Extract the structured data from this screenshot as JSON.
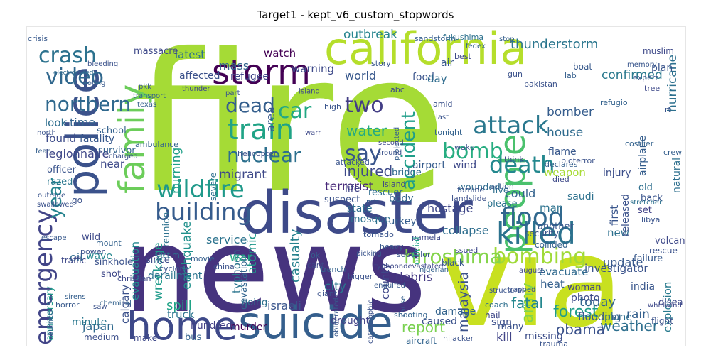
{
  "chart_data": {
    "type": "wordcloud",
    "title": "Target1 - kept_v6_custom_stopwords",
    "words": [
      {
        "text": "fire",
        "color": "#a5db36"
      },
      {
        "text": "news",
        "color": "#46337e"
      },
      {
        "text": "via",
        "color": "#c8e020"
      },
      {
        "text": "disaster",
        "color": "#3e4a89"
      },
      {
        "text": "california",
        "color": "#b5de2b"
      },
      {
        "text": "suicide",
        "color": "#355f8d"
      },
      {
        "text": "police",
        "color": "#3b528b"
      },
      {
        "text": "home",
        "color": "#3e4989"
      },
      {
        "text": "family",
        "color": "#6ccd5a"
      },
      {
        "text": "people",
        "color": "#4ac16d"
      },
      {
        "text": "killed",
        "color": "#2c728e"
      },
      {
        "text": "storm",
        "color": "#440154"
      },
      {
        "text": "train",
        "color": "#20a386"
      },
      {
        "text": "bombing",
        "color": "#a0da39"
      },
      {
        "text": "hiroshima",
        "color": "#84d44b"
      },
      {
        "text": "flood",
        "color": "#31688e"
      },
      {
        "text": "building",
        "color": "#365c8d"
      },
      {
        "text": "wildfire",
        "color": "#1f998a"
      },
      {
        "text": "emergency",
        "color": "#414487"
      },
      {
        "text": "death",
        "color": "#23888e"
      },
      {
        "text": "attack",
        "color": "#2a788e"
      },
      {
        "text": "crash",
        "color": "#2c728e"
      },
      {
        "text": "video",
        "color": "#31688e"
      },
      {
        "text": "northern",
        "color": "#30698e"
      },
      {
        "text": "nuclear",
        "color": "#2d708e"
      },
      {
        "text": "car",
        "color": "#22a884"
      },
      {
        "text": "dead",
        "color": "#355f8d"
      },
      {
        "text": "bomb",
        "color": "#27ad81"
      },
      {
        "text": "say",
        "color": "#39558c"
      },
      {
        "text": "two",
        "color": "#433e85"
      },
      {
        "text": "accident",
        "color": "#1f9e89"
      },
      {
        "text": "year",
        "color": "#25838e"
      },
      {
        "text": "thunderstorm",
        "color": "#2a768e"
      },
      {
        "text": "outbreak",
        "color": "#25848e"
      },
      {
        "text": "confirmed",
        "color": "#29798e"
      },
      {
        "text": "hurricane",
        "color": "#2d708e"
      },
      {
        "text": "weather",
        "color": "#2e6f8e"
      },
      {
        "text": "army",
        "color": "#7fd34e"
      },
      {
        "text": "forest",
        "color": "#1e9c89"
      },
      {
        "text": "fatal",
        "color": "#24878e"
      },
      {
        "text": "obama",
        "color": "#3b528b"
      },
      {
        "text": "explosion",
        "color": "#297b8e"
      },
      {
        "text": "malaysia",
        "color": "#3b528b"
      },
      {
        "text": "report",
        "color": "#7ad151"
      },
      {
        "text": "injured",
        "color": "#3e4a89"
      },
      {
        "text": "terrorist",
        "color": "#482878"
      },
      {
        "text": "hostage",
        "color": "#3f4788"
      },
      {
        "text": "collapse",
        "color": "#2e6e8e"
      },
      {
        "text": "debris",
        "color": "#443983"
      },
      {
        "text": "city",
        "color": "#2a768e"
      },
      {
        "text": "casualty",
        "color": "#26828e"
      },
      {
        "text": "atomic",
        "color": "#1f988b"
      },
      {
        "text": "typhoon",
        "color": "#2b758e"
      },
      {
        "text": "earthquake",
        "color": "#21918c"
      },
      {
        "text": "wreckage",
        "color": "#1e9b8a"
      },
      {
        "text": "evacuation",
        "color": "#23898e"
      },
      {
        "text": "refugee",
        "color": "#404588"
      },
      {
        "text": "mass",
        "color": "#32648e"
      },
      {
        "text": "water",
        "color": "#25ab82"
      },
      {
        "text": "bomber",
        "color": "#365d8d"
      },
      {
        "text": "house",
        "color": "#2f6b8e"
      },
      {
        "text": "world",
        "color": "#38588c"
      },
      {
        "text": "warning",
        "color": "#3e4a89"
      },
      {
        "text": "watch",
        "color": "#440154"
      },
      {
        "text": "food",
        "color": "#3a548c"
      },
      {
        "text": "latest",
        "color": "#2d718e"
      },
      {
        "text": "day",
        "color": "#2f6c8e"
      },
      {
        "text": "look",
        "color": "#2e6e8e"
      },
      {
        "text": "found",
        "color": "#3e4c8a"
      },
      {
        "text": "time",
        "color": "#33638d"
      },
      {
        "text": "legionnaire",
        "color": "#3f4889"
      },
      {
        "text": "weapon",
        "color": "#a8db34"
      },
      {
        "text": "burning",
        "color": "#1fa088"
      },
      {
        "text": "migrant",
        "color": "#3e4989"
      },
      {
        "text": "service",
        "color": "#2c738e"
      },
      {
        "text": "could",
        "color": "#33628d"
      },
      {
        "text": "update",
        "color": "#38598c"
      },
      {
        "text": "man",
        "color": "#2c728e"
      },
      {
        "text": "first",
        "color": "#39568c"
      },
      {
        "text": "new",
        "color": "#2d708e"
      },
      {
        "text": "near",
        "color": "#3e4a89"
      },
      {
        "text": "spill",
        "color": "#20a386"
      },
      {
        "text": "wave",
        "color": "#24868e"
      },
      {
        "text": "oil",
        "color": "#2f6b8e"
      },
      {
        "text": "today",
        "color": "#32648e"
      },
      {
        "text": "flooding",
        "color": "#38598c"
      },
      {
        "text": "rain",
        "color": "#34608d"
      },
      {
        "text": "plane",
        "color": "#2e6e8e"
      },
      {
        "text": "kill",
        "color": "#414487"
      },
      {
        "text": "murder",
        "color": "#440154"
      },
      {
        "text": "war",
        "color": "#22a785"
      },
      {
        "text": "israeli",
        "color": "#39558c"
      },
      {
        "text": "released",
        "color": "#3b528b"
      },
      {
        "text": "natural",
        "color": "#2e6f8e"
      },
      {
        "text": "life",
        "color": "#414487"
      },
      {
        "text": "mosque",
        "color": "#2d718e"
      },
      {
        "text": "japan",
        "color": "#306a8e"
      },
      {
        "text": "truck",
        "color": "#2b748e"
      },
      {
        "text": "county",
        "color": "#3f4788"
      },
      {
        "text": "heat",
        "color": "#35608d"
      },
      {
        "text": "investigator",
        "color": "#3a538b"
      },
      {
        "text": "photo",
        "color": "#3e4a89"
      },
      {
        "text": "evacuate",
        "color": "#306a8e"
      },
      {
        "text": "india",
        "color": "#39568c"
      },
      {
        "text": "minute",
        "color": "#2a788e"
      },
      {
        "text": "anniversary",
        "color": "#1f998a"
      },
      {
        "text": "calgary",
        "color": "#3b518b"
      },
      {
        "text": "sign",
        "color": "#3c4f8a"
      },
      {
        "text": "hundred",
        "color": "#424086"
      },
      {
        "text": "drought",
        "color": "#414287"
      },
      {
        "text": "caused",
        "color": "#3b528b"
      },
      {
        "text": "damage",
        "color": "#33638d"
      },
      {
        "text": "bus",
        "color": "#33628d"
      },
      {
        "text": "going",
        "color": "#2d718e"
      },
      {
        "text": "devastation",
        "color": "#32648e"
      },
      {
        "text": "turkey",
        "color": "#355e8d"
      },
      {
        "text": "flame",
        "color": "#38588c"
      },
      {
        "text": "injury",
        "color": "#3c4f8a"
      },
      {
        "text": "airplane",
        "color": "#355e8d"
      },
      {
        "text": "reunion",
        "color": "#2c718e"
      },
      {
        "text": "derailment",
        "color": "#2b748e"
      },
      {
        "text": "fatality",
        "color": "#38598c"
      },
      {
        "text": "old",
        "color": "#2e6f8e"
      },
      {
        "text": "back",
        "color": "#3a548c"
      },
      {
        "text": "set",
        "color": "#414287"
      },
      {
        "text": "failure",
        "color": "#38598c"
      },
      {
        "text": "body",
        "color": "#32648e"
      },
      {
        "text": "rescuer",
        "color": "#2f6c8e"
      },
      {
        "text": "suspect",
        "color": "#3b528b"
      },
      {
        "text": "state",
        "color": "#2e6e8e"
      },
      {
        "text": "bridge",
        "color": "#31688e"
      },
      {
        "text": "airport",
        "color": "#365c8d"
      },
      {
        "text": "wind",
        "color": "#3e4989"
      },
      {
        "text": "saudi",
        "color": "#2d718e"
      },
      {
        "text": "massacre",
        "color": "#3e4989"
      },
      {
        "text": "affected",
        "color": "#3b518b"
      },
      {
        "text": "air",
        "color": "#38588c"
      },
      {
        "text": "plan",
        "color": "#3a548c"
      },
      {
        "text": "muslim",
        "color": "#3e4989"
      },
      {
        "text": "sinkhole",
        "color": "#3b528b"
      },
      {
        "text": "shot",
        "color": "#3f4889"
      },
      {
        "text": "since",
        "color": "#3d4d8a"
      },
      {
        "text": "survivor",
        "color": "#33638d"
      },
      {
        "text": "officer",
        "color": "#3a548c"
      },
      {
        "text": "razed",
        "color": "#2a778e"
      },
      {
        "text": "go",
        "color": "#3b528b"
      },
      {
        "text": "wild",
        "color": "#3e4a89"
      },
      {
        "text": "school",
        "color": "#34618d"
      },
      {
        "text": "live",
        "color": "#2e6f8e"
      },
      {
        "text": "please",
        "color": "#2c738e"
      },
      {
        "text": "another",
        "color": "#39568c"
      },
      {
        "text": "woman",
        "color": "#414487"
      },
      {
        "text": "security",
        "color": "#3a548c"
      },
      {
        "text": "missing",
        "color": "#3d4e8a"
      },
      {
        "text": "many",
        "color": "#3b528b"
      },
      {
        "text": "sandstorm",
        "color": "#355f8d"
      },
      {
        "text": "fukushima",
        "color": "#2d718e"
      },
      {
        "text": "area",
        "color": "#38598c"
      },
      {
        "text": "collided",
        "color": "#33628d"
      },
      {
        "text": "wounded",
        "color": "#2f6b8e"
      },
      {
        "text": "severe",
        "color": "#2d708e"
      },
      {
        "text": "landslide",
        "color": "#3c4f8a"
      },
      {
        "text": "volcano",
        "color": "#3e4989"
      },
      {
        "text": "rescue",
        "color": "#3b528b"
      },
      {
        "text": "story",
        "color": "#39568c"
      },
      {
        "text": "best",
        "color": "#3e4989"
      },
      {
        "text": "gun",
        "color": "#3b528b"
      },
      {
        "text": "boat",
        "color": "#38598c"
      },
      {
        "text": "expert",
        "color": "#3a548c"
      },
      {
        "text": "costlier",
        "color": "#33628d"
      },
      {
        "text": "crew",
        "color": "#355f8d"
      },
      {
        "text": "island",
        "color": "#3f4788"
      },
      {
        "text": "electrocuted",
        "color": "#306a8e"
      },
      {
        "text": "disea",
        "color": "#3e4989"
      },
      {
        "text": "stretcher",
        "color": "#2d718e"
      },
      {
        "text": "hijacker",
        "color": "#3b528b"
      },
      {
        "text": "aircraft",
        "color": "#32648e"
      },
      {
        "text": "crashed",
        "color": "#3e4989"
      },
      {
        "text": "trauma",
        "color": "#3a548c"
      },
      {
        "text": "flight",
        "color": "#3b528b"
      },
      {
        "text": "shooting",
        "color": "#33638d"
      },
      {
        "text": "hail",
        "color": "#3f4788"
      },
      {
        "text": "coach",
        "color": "#2e6f8e"
      },
      {
        "text": "make",
        "color": "#3e4989"
      },
      {
        "text": "medium",
        "color": "#3c4f8a"
      },
      {
        "text": "horror",
        "color": "#38598c"
      },
      {
        "text": "movie",
        "color": "#355f8d"
      },
      {
        "text": "china",
        "color": "#3b528b"
      },
      {
        "text": "cyclone",
        "color": "#3a548c"
      },
      {
        "text": "victim",
        "color": "#2d718e"
      },
      {
        "text": "traffic",
        "color": "#3e4989"
      },
      {
        "text": "power",
        "color": "#3b528b"
      },
      {
        "text": "mount",
        "color": "#33628d"
      },
      {
        "text": "black",
        "color": "#39568c"
      },
      {
        "text": "soudelor",
        "color": "#3a548c"
      },
      {
        "text": "heavy",
        "color": "#38598c"
      },
      {
        "text": "pamela",
        "color": "#3e4989"
      },
      {
        "text": "bigger",
        "color": "#3b528b"
      },
      {
        "text": "trench",
        "color": "#33628d"
      },
      {
        "text": "ok",
        "color": "#355f8d"
      },
      {
        "text": "cant",
        "color": "#3f4788"
      },
      {
        "text": "giant",
        "color": "#3b528b"
      },
      {
        "text": "high",
        "color": "#3a548c"
      },
      {
        "text": "mh",
        "color": "#38598c"
      },
      {
        "text": "abc",
        "color": "#3e4989"
      },
      {
        "text": "amid",
        "color": "#3b528b"
      },
      {
        "text": "fedex",
        "color": "#33628d"
      },
      {
        "text": "stop",
        "color": "#355f8d"
      },
      {
        "text": "memory",
        "color": "#39568c"
      },
      {
        "text": "tree",
        "color": "#3e4989"
      },
      {
        "text": "rt",
        "color": "#3a548c"
      },
      {
        "text": "bioterror",
        "color": "#3b528b"
      },
      {
        "text": "crisis",
        "color": "#38598c"
      },
      {
        "text": "christian",
        "color": "#3e4989"
      },
      {
        "text": "ambulance",
        "color": "#33628d"
      },
      {
        "text": "helicopter",
        "color": "#3b528b"
      },
      {
        "text": "attacked",
        "color": "#3a548c"
      },
      {
        "text": "declares",
        "color": "#355f8d"
      },
      {
        "text": "died",
        "color": "#3e4989"
      },
      {
        "text": "famine",
        "color": "#3b528b"
      },
      {
        "text": "action",
        "color": "#39568c"
      },
      {
        "text": "tornado",
        "color": "#3a548c"
      },
      {
        "text": "issued",
        "color": "#3e4989"
      },
      {
        "text": "wake",
        "color": "#3b528b"
      },
      {
        "text": "tonight",
        "color": "#33628d"
      },
      {
        "text": "lab",
        "color": "#355f8d"
      },
      {
        "text": "think",
        "color": "#3e4989"
      },
      {
        "text": "outrage",
        "color": "#3a548c"
      },
      {
        "text": "swallowed",
        "color": "#3b528b"
      },
      {
        "text": "escape",
        "color": "#38598c"
      },
      {
        "text": "thunder",
        "color": "#3e4989"
      },
      {
        "text": "pakistan",
        "color": "#3b528b"
      },
      {
        "text": "refugio",
        "color": "#33628d"
      },
      {
        "text": "libya",
        "color": "#3a548c"
      },
      {
        "text": "projected",
        "color": "#355f8d"
      },
      {
        "text": "island",
        "color": "#3e4989"
      },
      {
        "text": "charged",
        "color": "#3b528b"
      },
      {
        "text": "structural",
        "color": "#3a548c"
      },
      {
        "text": "engulfed",
        "color": "#38598c"
      },
      {
        "text": "whirlwind",
        "color": "#3e4989"
      },
      {
        "text": "trapped",
        "color": "#3b528b"
      },
      {
        "text": "chemical",
        "color": "#33628d"
      },
      {
        "text": "sirens",
        "color": "#355f8d"
      },
      {
        "text": "picking",
        "color": "#3a548c"
      },
      {
        "text": "typhoondevastated",
        "color": "#3e4989"
      },
      {
        "text": "catastrophic",
        "color": "#3b528b"
      },
      {
        "text": "obliterated",
        "color": "#38598c"
      },
      {
        "text": "nigerian",
        "color": "#33628d"
      },
      {
        "text": "cause",
        "color": "#355f8d"
      },
      {
        "text": "official",
        "color": "#1fa088"
      },
      {
        "text": "warr",
        "color": "#3e4989"
      },
      {
        "text": "part",
        "color": "#3a548c"
      },
      {
        "text": "bleeding",
        "color": "#3b528b"
      },
      {
        "text": "rioting",
        "color": "#38598c"
      },
      {
        "text": "transport",
        "color": "#33628d"
      },
      {
        "text": "texas",
        "color": "#355f8d"
      },
      {
        "text": "second",
        "color": "#3e4989"
      },
      {
        "text": "around",
        "color": "#3b528b"
      },
      {
        "text": "last",
        "color": "#3a548c"
      },
      {
        "text": "pkk",
        "color": "#38598c"
      },
      {
        "text": "august",
        "color": "#3e4989"
      },
      {
        "text": "saw",
        "color": "#3b528b"
      },
      {
        "text": "burned",
        "color": "#33628d"
      },
      {
        "text": "fear",
        "color": "#355f8d"
      },
      {
        "text": "north",
        "color": "#3a548c"
      }
    ]
  }
}
